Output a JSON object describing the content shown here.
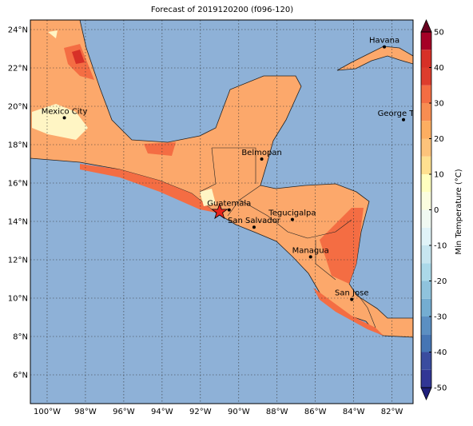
{
  "title": "Forecast of 2019120200 (f096-120)",
  "map": {
    "xlim": [
      -100.875,
      -80.9
    ],
    "ylim": [
      4.5,
      24.5
    ],
    "xticks": [
      {
        "value": -100,
        "label": "100°W"
      },
      {
        "value": -98,
        "label": "98°W"
      },
      {
        "value": -96,
        "label": "96°W"
      },
      {
        "value": -94,
        "label": "94°W"
      },
      {
        "value": -92,
        "label": "92°W"
      },
      {
        "value": -90,
        "label": "90°W"
      },
      {
        "value": -88,
        "label": "88°W"
      },
      {
        "value": -86,
        "label": "86°W"
      },
      {
        "value": -84,
        "label": "84°W"
      },
      {
        "value": -82,
        "label": "82°W"
      }
    ],
    "yticks": [
      {
        "value": 6,
        "label": "6°N"
      },
      {
        "value": 8,
        "label": "8°N"
      },
      {
        "value": 10,
        "label": "10°N"
      },
      {
        "value": 12,
        "label": "12°N"
      },
      {
        "value": 14,
        "label": "14°N"
      },
      {
        "value": 16,
        "label": "16°N"
      },
      {
        "value": 18,
        "label": "18°N"
      },
      {
        "value": 20,
        "label": "20°N"
      },
      {
        "value": 22,
        "label": "22°N"
      },
      {
        "value": 24,
        "label": "24°N"
      }
    ],
    "cities": [
      {
        "name": "Havana",
        "lon": -82.4,
        "lat": 23.1
      },
      {
        "name": "Mexico City",
        "lon": -99.1,
        "lat": 19.4
      },
      {
        "name": "George Town",
        "lon": -81.4,
        "lat": 19.3
      },
      {
        "name": "Belmopan",
        "lon": -88.8,
        "lat": 17.25
      },
      {
        "name": "Guatemala",
        "lon": -90.5,
        "lat": 14.6
      },
      {
        "name": "San Salvador",
        "lon": -89.2,
        "lat": 13.7
      },
      {
        "name": "Tegucigalpa",
        "lon": -87.2,
        "lat": 14.1
      },
      {
        "name": "Managua",
        "lon": -86.25,
        "lat": 12.15
      },
      {
        "name": "San Jose",
        "lon": -84.1,
        "lat": 9.93
      }
    ],
    "storm": {
      "lon": -91.0,
      "lat": 14.5
    }
  },
  "colorbar": {
    "label": "Min Temperature (°C)",
    "levels": [
      -50,
      -45,
      -40,
      -35,
      -30,
      -25,
      -20,
      -15,
      -10,
      -5,
      0,
      5,
      10,
      15,
      20,
      25,
      30,
      35,
      40,
      45,
      50
    ],
    "colors": [
      "#313695",
      "#3a4c9f",
      "#4575b4",
      "#5b8fc2",
      "#74add1",
      "#8fc3dd",
      "#abd9e9",
      "#c7e6f0",
      "#e0f3f8",
      "#f0f9f2",
      "#fbfddf",
      "#ffffbf",
      "#fee090",
      "#fdc37b",
      "#fdae61",
      "#f88d52",
      "#f46d43",
      "#dd3d2d",
      "#d73027",
      "#a50026"
    ],
    "ticks": [
      -50,
      -40,
      -30,
      -20,
      -10,
      0,
      10,
      20,
      30,
      40,
      50
    ]
  }
}
